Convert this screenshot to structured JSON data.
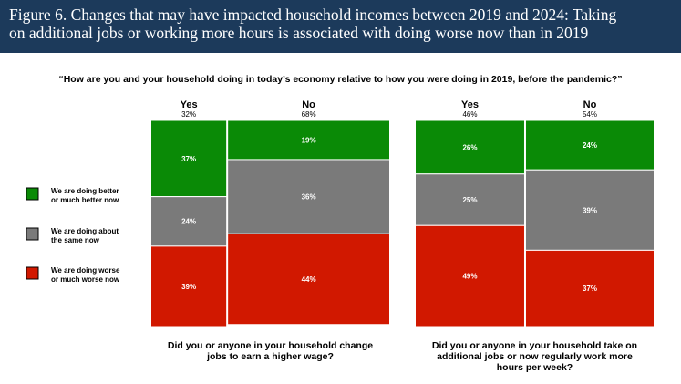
{
  "figure": {
    "title_line1": "Figure 6. Changes that may have impacted household incomes between 2019 and 2024: Taking",
    "title_line2": "on additional jobs or working more hours is associated with doing worse now than in 2019"
  },
  "question": "“How are you and your household doing in today’s economy relative to how you were doing in 2019, before the pandemic?”",
  "colors": {
    "better": "#0a8a06",
    "same": "#7a7a7a",
    "worse": "#d11800"
  },
  "chart_data": {
    "type": "bar",
    "subtype": "marimekko",
    "legend": [
      {
        "key": "better",
        "lines": [
          "We are doing better",
          "or much better now"
        ]
      },
      {
        "key": "same",
        "lines": [
          "We are doing about",
          "the same now"
        ]
      },
      {
        "key": "worse",
        "lines": [
          "We are doing worse",
          "or much worse now"
        ]
      }
    ],
    "groups": [
      {
        "label_lines": [
          "Did you or anyone in your household change",
          "jobs to earn a higher wage?"
        ],
        "columns": [
          {
            "name": "Yes",
            "share": 32,
            "share_label": "32%",
            "values": {
              "better": 37,
              "same": 24,
              "worse": 39
            },
            "labels": {
              "better": "37%",
              "same": "24%",
              "worse": "39%"
            }
          },
          {
            "name": "No",
            "share": 68,
            "share_label": "68%",
            "values": {
              "better": 19,
              "same": 36,
              "worse": 44
            },
            "labels": {
              "better": "19%",
              "same": "36%",
              "worse": "44%"
            }
          }
        ]
      },
      {
        "label_lines": [
          "Did you or anyone in your household take on",
          "additional jobs or now regularly work more",
          "hours per week?"
        ],
        "columns": [
          {
            "name": "Yes",
            "share": 46,
            "share_label": "46%",
            "values": {
              "better": 26,
              "same": 25,
              "worse": 49
            },
            "labels": {
              "better": "26%",
              "same": "25%",
              "worse": "49%"
            }
          },
          {
            "name": "No",
            "share": 54,
            "share_label": "54%",
            "values": {
              "better": 24,
              "same": 39,
              "worse": 37
            },
            "labels": {
              "better": "24%",
              "same": "39%",
              "worse": "37%"
            }
          }
        ]
      }
    ],
    "ylim": [
      0,
      100
    ]
  }
}
